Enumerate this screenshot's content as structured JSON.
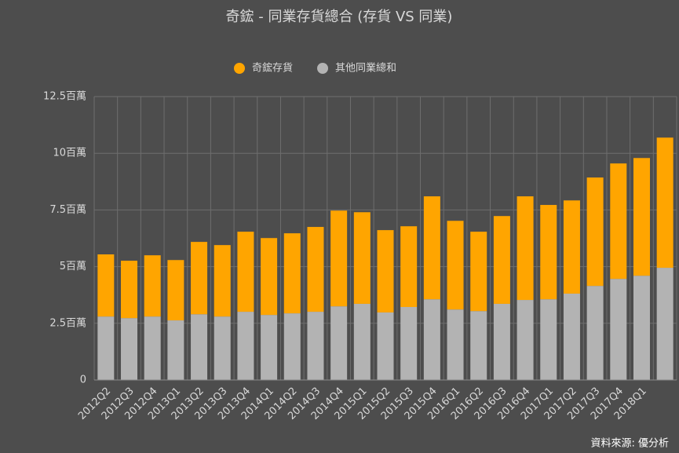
{
  "chart_data": {
    "type": "stacked_bar",
    "title": "奇鋐 - 同業存貨總合 (存貨 VS 同業)",
    "source": "資料來源: 優分析",
    "categories": [
      "2012Q2",
      "2012Q3",
      "2012Q4",
      "2013Q1",
      "2013Q2",
      "2013Q3",
      "2013Q4",
      "2014Q1",
      "2014Q2",
      "2014Q3",
      "2014Q4",
      "2015Q1",
      "2015Q2",
      "2015Q3",
      "2015Q4",
      "2016Q1",
      "2016Q2",
      "2016Q3",
      "2016Q4",
      "2017Q1",
      "2017Q2",
      "2017Q3",
      "2017Q4",
      "2018Q1",
      null
    ],
    "series": [
      {
        "name": "奇鋐存貨",
        "color": "#ffa500",
        "values": [
          2.74,
          2.53,
          2.7,
          2.66,
          3.19,
          3.15,
          3.53,
          3.39,
          3.53,
          3.74,
          4.22,
          4.04,
          3.63,
          3.56,
          4.54,
          3.91,
          3.5,
          3.87,
          4.57,
          4.16,
          4.11,
          4.78,
          5.09,
          5.19,
          5.74
        ]
      },
      {
        "name": "其他同業總和",
        "color": "#b3b3b3",
        "values": [
          2.8,
          2.73,
          2.8,
          2.63,
          2.9,
          2.8,
          3.01,
          2.87,
          2.94,
          3.01,
          3.25,
          3.36,
          2.98,
          3.22,
          3.56,
          3.11,
          3.04,
          3.36,
          3.53,
          3.56,
          3.81,
          4.15,
          4.46,
          4.6,
          4.95
        ]
      }
    ],
    "ylim": [
      0,
      12.5
    ],
    "yticks": [
      0,
      {
        "value": 2.5,
        "label": "2.5百萬"
      },
      {
        "value": 5,
        "label": "5百萬"
      },
      {
        "value": 7.5,
        "label": "7.5百萬"
      },
      {
        "value": 10,
        "label": "10百萬"
      },
      {
        "value": 12.5,
        "label": "12.5百萬"
      }
    ],
    "grid": true,
    "legend": "top"
  }
}
